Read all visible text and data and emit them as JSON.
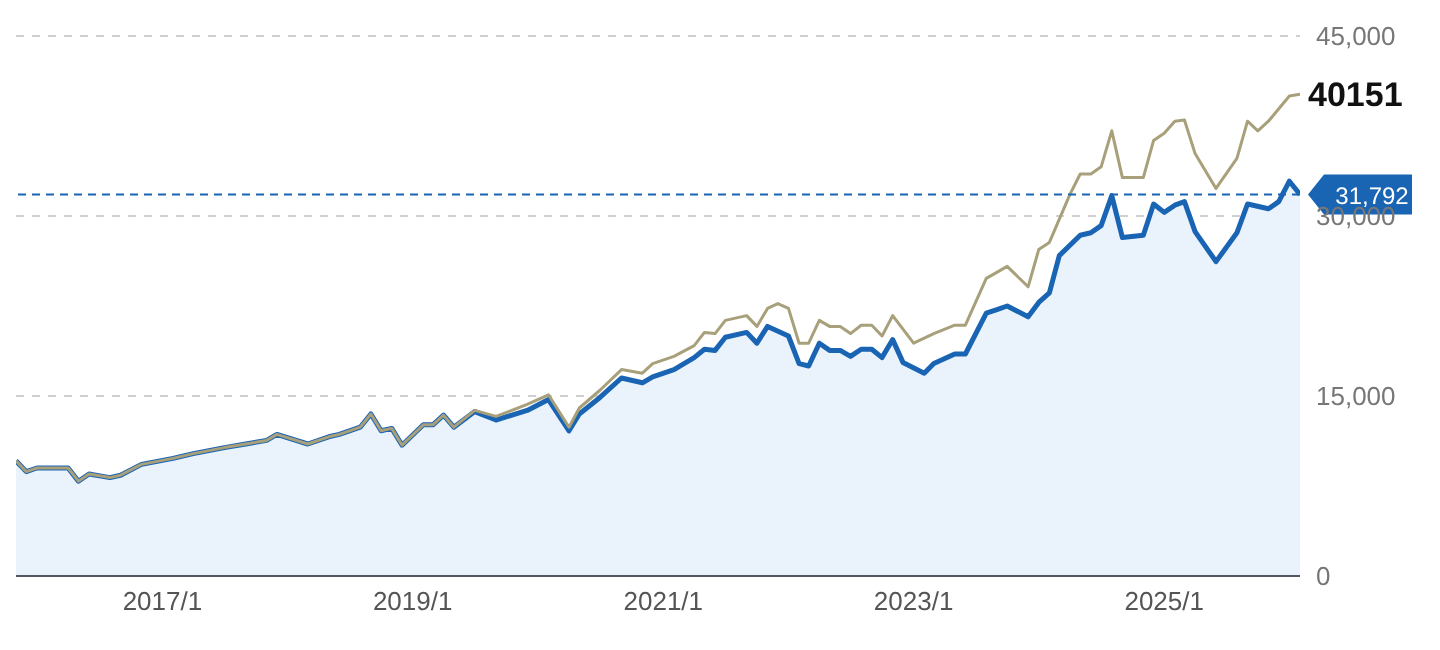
{
  "chart_data": {
    "type": "line",
    "series": [
      {
        "type": "area",
        "color": "#1a64b4",
        "x": [
          "2015-11",
          "2015-12",
          "2016-01",
          "2016-04",
          "2016-05",
          "2016-06",
          "2016-08",
          "2016-09",
          "2016-11",
          "2017-02",
          "2017-04",
          "2017-07",
          "2017-09",
          "2017-11",
          "2017-12",
          "2018-03",
          "2018-05",
          "2018-06",
          "2018-08",
          "2018-09",
          "2018-10",
          "2018-11",
          "2018-12",
          "2019-02",
          "2019-03",
          "2019-04",
          "2019-05",
          "2019-07",
          "2019-09",
          "2019-12",
          "2020-02",
          "2020-04",
          "2020-05",
          "2020-07",
          "2020-09",
          "2020-11",
          "2020-12",
          "2021-02",
          "2021-04",
          "2021-05",
          "2021-06",
          "2021-07",
          "2021-09",
          "2021-10",
          "2021-11",
          "2022-01",
          "2022-02",
          "2022-03",
          "2022-04",
          "2022-05",
          "2022-06",
          "2022-07",
          "2022-08",
          "2022-09",
          "2022-10",
          "2022-11",
          "2022-12",
          "2023-02",
          "2023-03",
          "2023-05",
          "2023-06",
          "2023-08",
          "2023-09",
          "2023-10",
          "2023-12",
          "2024-01",
          "2024-02",
          "2024-03",
          "2024-05",
          "2024-06",
          "2024-07",
          "2024-08",
          "2024-09",
          "2024-11",
          "2024-12",
          "2025-01",
          "2025-02",
          "2025-03",
          "2025-04",
          "2025-06",
          "2025-08",
          "2025-09",
          "2025-11",
          "2025-12",
          "2026-01",
          "2026-02"
        ],
        "values": [
          9600,
          8700,
          9000,
          9000,
          7900,
          8500,
          8200,
          8400,
          9300,
          9800,
          10200,
          10700,
          11000,
          11300,
          11800,
          11000,
          11600,
          11800,
          12400,
          13500,
          12100,
          12300,
          10900,
          12600,
          12600,
          13400,
          12400,
          13700,
          13000,
          13800,
          14700,
          12100,
          13500,
          14900,
          16500,
          16100,
          16600,
          17200,
          18200,
          18900,
          18800,
          19900,
          20300,
          19400,
          20800,
          20000,
          17700,
          17500,
          19400,
          18800,
          18800,
          18300,
          18900,
          18900,
          18200,
          19700,
          17800,
          16900,
          17700,
          18500,
          18500,
          21900,
          22200,
          22500,
          21600,
          22800,
          23600,
          26700,
          28400,
          28600,
          29200,
          31700,
          28200,
          28400,
          31000,
          30300,
          30900,
          31200,
          28700,
          26200,
          28600,
          31000,
          30600,
          31200,
          32900,
          31792
        ]
      },
      {
        "color": "#a8a07a",
        "x": [
          "2015-11",
          "2015-12",
          "2016-01",
          "2016-04",
          "2016-05",
          "2016-06",
          "2016-08",
          "2016-09",
          "2016-11",
          "2017-02",
          "2017-04",
          "2017-07",
          "2017-09",
          "2017-11",
          "2017-12",
          "2018-03",
          "2018-05",
          "2018-06",
          "2018-08",
          "2018-09",
          "2018-10",
          "2018-11",
          "2018-12",
          "2019-02",
          "2019-03",
          "2019-04",
          "2019-05",
          "2019-07",
          "2019-09",
          "2019-12",
          "2020-02",
          "2020-04",
          "2020-05",
          "2020-07",
          "2020-09",
          "2020-11",
          "2020-12",
          "2021-02",
          "2021-04",
          "2021-05",
          "2021-06",
          "2021-07",
          "2021-09",
          "2021-10",
          "2021-11",
          "2021-12",
          "2022-01",
          "2022-02",
          "2022-03",
          "2022-04",
          "2022-05",
          "2022-06",
          "2022-07",
          "2022-08",
          "2022-09",
          "2022-10",
          "2022-11",
          "2023-01",
          "2023-03",
          "2023-05",
          "2023-06",
          "2023-08",
          "2023-10",
          "2023-12",
          "2024-01",
          "2024-02",
          "2024-04",
          "2024-05",
          "2024-06",
          "2024-07",
          "2024-08",
          "2024-09",
          "2024-11",
          "2024-12",
          "2025-01",
          "2025-02",
          "2025-03",
          "2025-04",
          "2025-06",
          "2025-08",
          "2025-09",
          "2025-10",
          "2025-11",
          "2026-01",
          "2026-02"
        ],
        "values": [
          9600,
          8700,
          9000,
          9000,
          7900,
          8500,
          8200,
          8400,
          9300,
          9800,
          10200,
          10700,
          11000,
          11300,
          11800,
          11000,
          11600,
          11800,
          12400,
          13500,
          12100,
          12300,
          10900,
          12600,
          12600,
          13400,
          12400,
          13800,
          13300,
          14300,
          15100,
          12400,
          14000,
          15500,
          17200,
          16900,
          17700,
          18300,
          19200,
          20300,
          20200,
          21300,
          21700,
          20800,
          22300,
          22700,
          22300,
          19400,
          19400,
          21300,
          20800,
          20800,
          20200,
          20900,
          20900,
          20000,
          21700,
          19400,
          20200,
          20900,
          20900,
          24800,
          25800,
          24100,
          27200,
          27800,
          31800,
          33500,
          33500,
          34100,
          37100,
          33200,
          33200,
          36300,
          36900,
          37900,
          38000,
          35200,
          32300,
          34800,
          37900,
          37100,
          37900,
          40000,
          40151
        ]
      }
    ],
    "xlim": [
      "2015-11",
      "2026-02"
    ],
    "xticks": [
      {
        "value": "2017-01",
        "label": "2017/1"
      },
      {
        "value": "2019-01",
        "label": "2019/1"
      },
      {
        "value": "2021-01",
        "label": "2021/1"
      },
      {
        "value": "2023-01",
        "label": "2023/1"
      },
      {
        "value": "2025-01",
        "label": "2025/1"
      }
    ],
    "ylim": [
      0,
      45000
    ],
    "yticks": [
      0,
      {
        "value": 15000,
        "label": "15,000"
      },
      {
        "value": 30000,
        "label": "30,000"
      },
      {
        "value": 45000,
        "label": "45,000"
      }
    ],
    "grid": "y",
    "ref_lines": [
      {
        "axis": "y",
        "value": 31792,
        "label": "31,792",
        "color": "#1a64b4",
        "line_style": "dashed"
      }
    ],
    "annotations": [
      {
        "text": "40151",
        "x": "2026-02",
        "y": 40151
      }
    ]
  }
}
